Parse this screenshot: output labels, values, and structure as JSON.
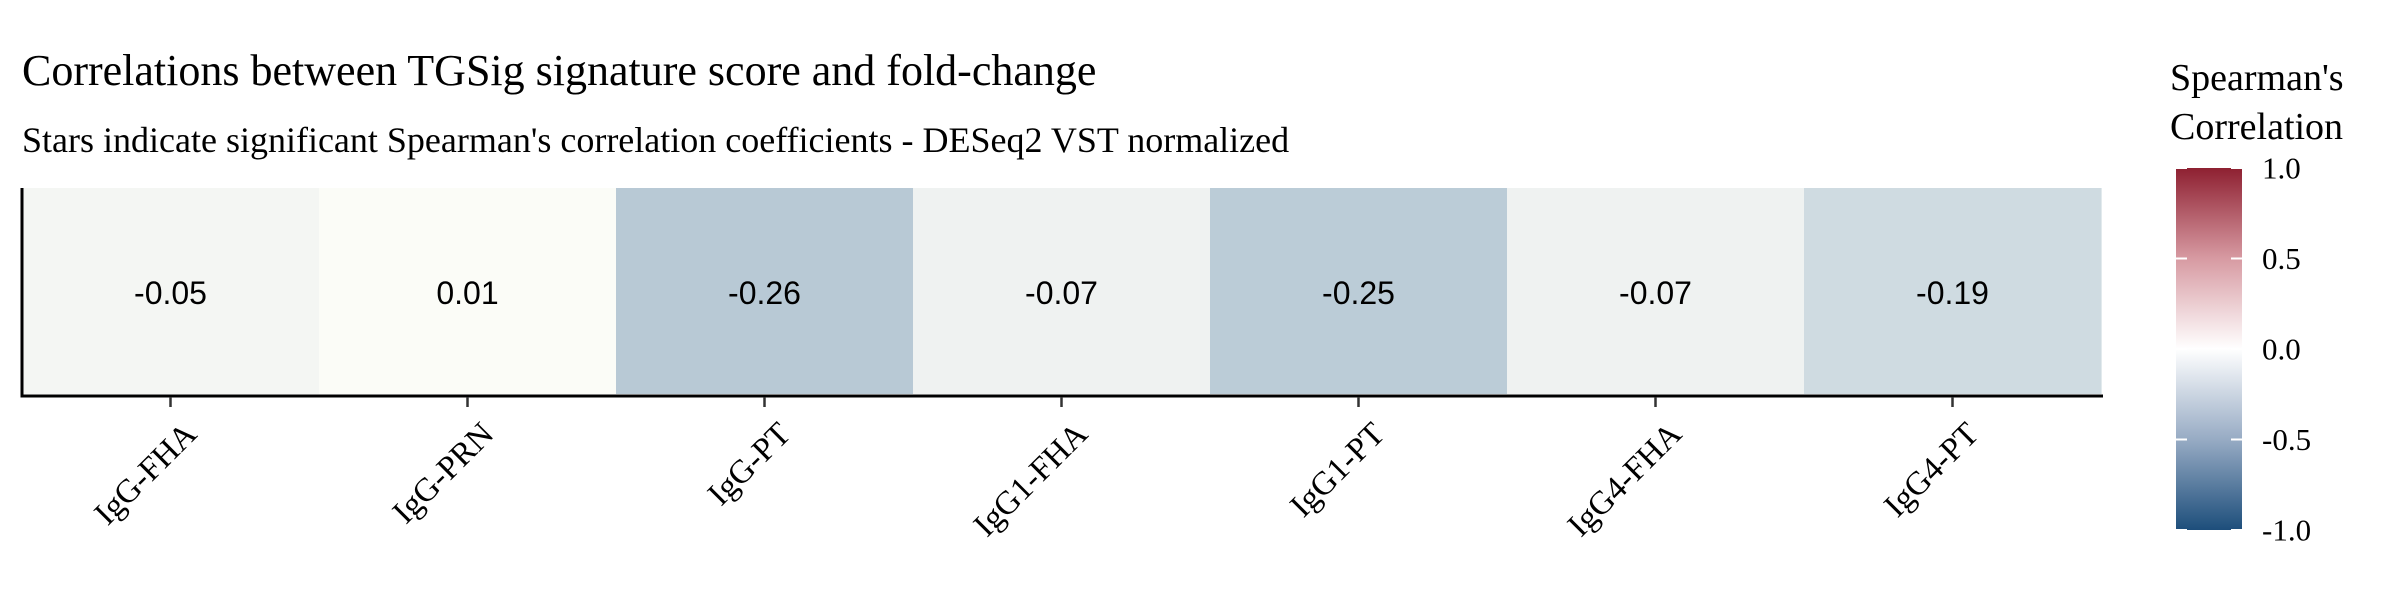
{
  "chart_data": {
    "type": "heatmap",
    "title": "Correlations between TGSig signature score and fold-change",
    "subtitle": "Stars indicate significant Spearman's correlation coefficients - DESeq2 VST normalized",
    "categories": [
      "IgG-FHA",
      "IgG-PRN",
      "IgG-PT",
      "IgG1-FHA",
      "IgG1-PT",
      "IgG4-FHA",
      "IgG4-PT"
    ],
    "values": [
      -0.05,
      0.01,
      -0.26,
      -0.07,
      -0.25,
      -0.07,
      -0.19
    ],
    "value_labels": [
      "-0.05",
      "0.01",
      "-0.26",
      "-0.07",
      "-0.25",
      "-0.07",
      "-0.19"
    ],
    "xlabel": "",
    "ylabel": "",
    "grid": false,
    "legend": {
      "title_line1": "Spearman's",
      "title_line2": "Correlation",
      "position": "right",
      "range": [
        -1.0,
        1.0
      ],
      "ticks": [
        1.0,
        0.5,
        0.0,
        -0.5,
        -1.0
      ],
      "tick_labels": [
        "1.0",
        "0.5",
        "0.0",
        "-0.5",
        "-1.0"
      ],
      "colors": {
        "high": "#8e2031",
        "mid": "#ffffff",
        "low": "#1d4e7b"
      }
    }
  }
}
